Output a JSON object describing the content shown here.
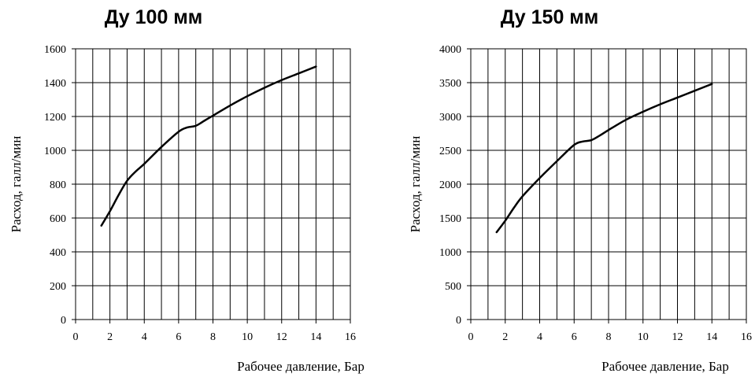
{
  "chart_data": [
    {
      "type": "line",
      "title": "Ду 100 мм",
      "xlabel": "Рабочее давление, Бар",
      "ylabel": "Расход, галл/мин",
      "xlim": [
        0,
        16
      ],
      "ylim": [
        0,
        1600
      ],
      "xticks": [
        0,
        2,
        4,
        6,
        8,
        10,
        12,
        14,
        16
      ],
      "yticks": [
        0,
        200,
        400,
        600,
        800,
        1000,
        1200,
        1400,
        1600
      ],
      "grid": true,
      "series": [
        {
          "x": [
            1.5,
            2,
            2.5,
            3,
            3.5,
            4,
            5,
            6,
            6.5,
            7,
            7.5,
            8,
            9,
            10,
            11,
            12,
            13,
            14
          ],
          "y": [
            555,
            640,
            735,
            820,
            875,
            920,
            1020,
            1110,
            1135,
            1145,
            1175,
            1205,
            1265,
            1320,
            1370,
            1415,
            1455,
            1495
          ]
        }
      ]
    },
    {
      "type": "line",
      "title": "Ду 150 мм",
      "xlabel": "Рабочее давление, Бар",
      "ylabel": "Расход, галл/мин",
      "xlim": [
        0,
        16
      ],
      "ylim": [
        0,
        4000
      ],
      "xticks": [
        0,
        2,
        4,
        6,
        8,
        10,
        12,
        14,
        16
      ],
      "yticks": [
        0,
        500,
        1000,
        1500,
        2000,
        2500,
        3000,
        3500,
        4000
      ],
      "grid": true,
      "series": [
        {
          "x": [
            1.5,
            2,
            2.5,
            3,
            4,
            5,
            6,
            6.5,
            7,
            7.5,
            8,
            9,
            10,
            11,
            12,
            13,
            14
          ],
          "y": [
            1290,
            1460,
            1650,
            1820,
            2090,
            2340,
            2580,
            2630,
            2650,
            2720,
            2800,
            2950,
            3070,
            3180,
            3280,
            3380,
            3480
          ]
        }
      ]
    }
  ]
}
